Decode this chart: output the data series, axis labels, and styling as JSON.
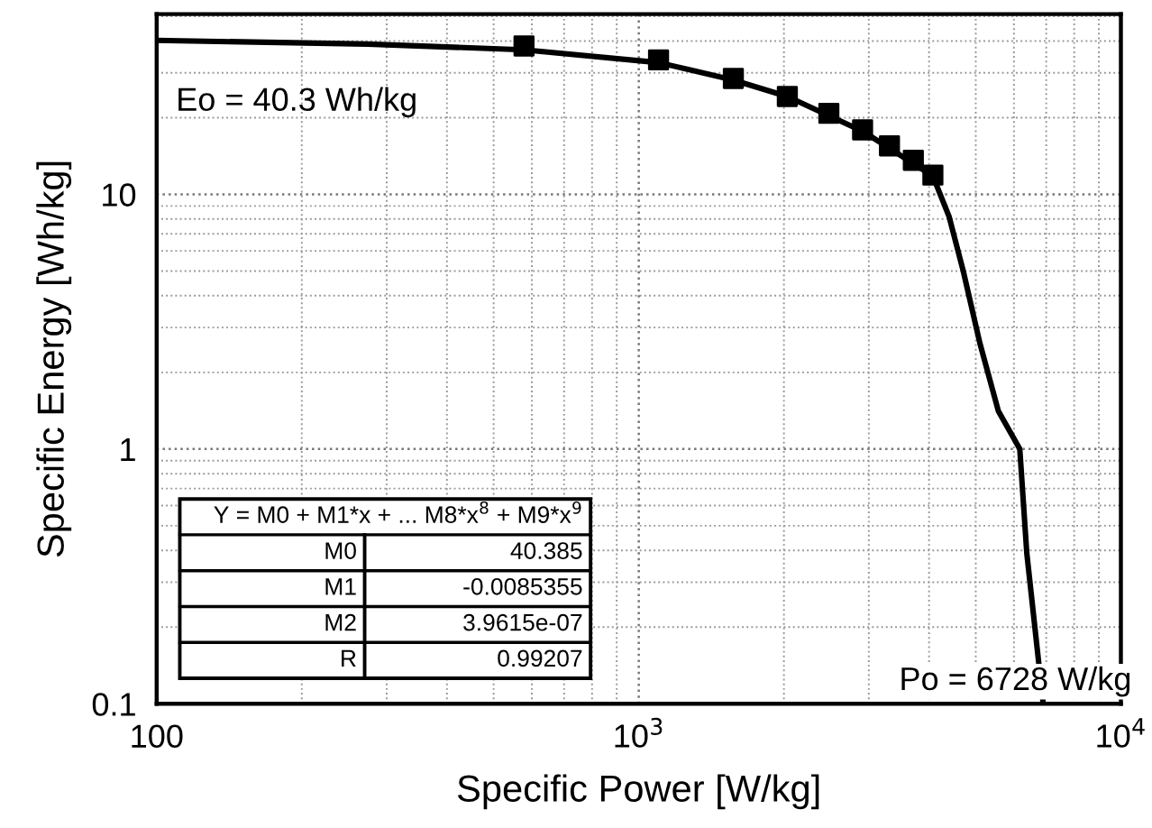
{
  "chart_data": {
    "type": "scatter",
    "xlabel": "Specific Power [W/kg]",
    "ylabel": "Specific Energy [Wh/kg]",
    "log": "xy",
    "grid": true,
    "marker": "square",
    "xlim": [
      100,
      10000
    ],
    "ylim": [
      0.1,
      51
    ],
    "xticks": [
      100,
      {
        "value": 1000,
        "label": "10$^{3}$"
      },
      {
        "value": 10000,
        "label": "10$^{4}$"
      }
    ],
    "yticks": [
      0.1,
      1,
      10
    ],
    "series": [
      {
        "color": "#000000",
        "x": [
          578,
          1099,
          1571,
          2033,
          2479,
          2912,
          3311,
          3711,
          4074
        ],
        "values": [
          38.2,
          33.7,
          28.5,
          24.2,
          20.8,
          17.9,
          15.5,
          13.6,
          11.9
        ]
      },
      {
        "type": "line",
        "color": "#000000",
        "marker": "none",
        "line_style": "solid",
        "x": [
          100,
          274,
          578,
          1099,
          1571,
          2033,
          2912,
          4074,
          4400,
          4710,
          5100,
          5570,
          6170,
          6380,
          6900
        ],
        "values": [
          40.2,
          38.9,
          36.9,
          32.9,
          28.1,
          24.2,
          17.7,
          11.8,
          8.2,
          5.0,
          2.6,
          1.41,
          1.0,
          0.39,
          0.1
        ]
      }
    ],
    "annotations": [
      "Eo = 40.3 Wh/kg",
      "Po = 6728 W/kg",
      "Y = M0 + M1*x + ... M8*x$^{8}$ + M9*x$^{9}$",
      "M0",
      "40.385",
      "M1",
      "-0.0085355",
      "M2",
      "3.9615e-07",
      "R",
      "0.99207"
    ]
  }
}
